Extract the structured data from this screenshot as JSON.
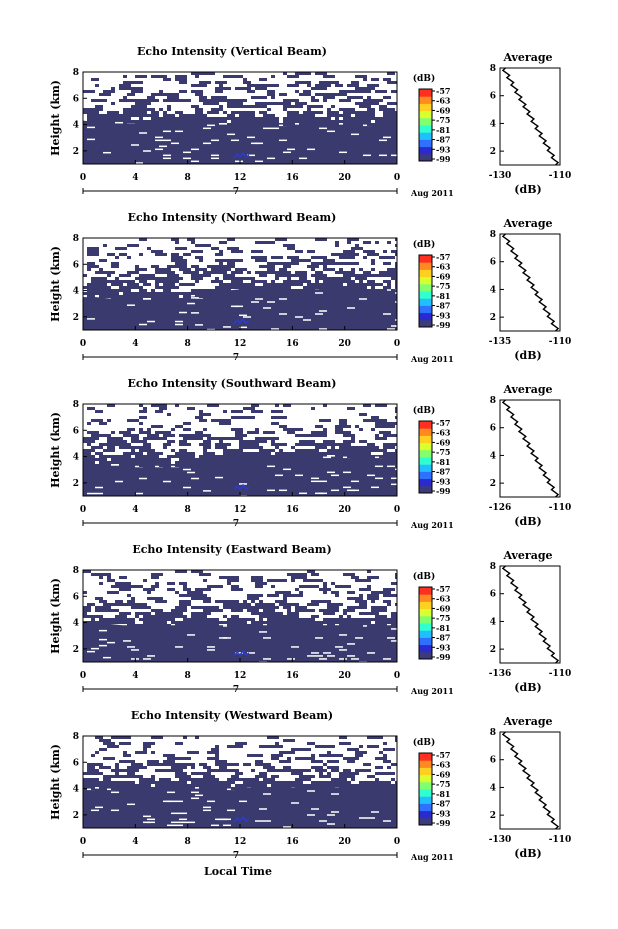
{
  "colors": {
    "background": "#ffffff",
    "echo_fill": "#3a3a6e",
    "feature": "#2a3ccf",
    "colorbar": [
      "#3b3b78",
      "#2a2ad0",
      "#3070ff",
      "#20c0ff",
      "#30ffd0",
      "#80ff70",
      "#d8ff30",
      "#ffd020",
      "#ff8a20",
      "#ff3020"
    ]
  },
  "figure": {
    "xlabel": "Local Time"
  },
  "chart_data": [
    {
      "type": "heatmap",
      "title": "Echo Intensity (Vertical Beam)",
      "ylabel": "Height (km)",
      "yticks": [
        "2",
        "4",
        "6",
        "8"
      ],
      "ylim": [
        1,
        8
      ],
      "xticks": [
        "0",
        "4",
        "8",
        "12",
        "16",
        "20",
        "0"
      ],
      "xlim": [
        0,
        24
      ],
      "date_label": "7",
      "month_label": "Aug 2011",
      "colorbar": {
        "unit": "(dB)",
        "ticks": [
          "-57",
          "-63",
          "-69",
          "-75",
          "-81",
          "-87",
          "-93",
          "-99"
        ]
      },
      "echo_top_km": [
        4.3,
        4.2,
        4.2,
        4.1,
        4.1,
        4.0,
        4.0,
        4.0,
        4.0,
        4.0,
        4.0,
        4.0,
        4.0,
        4.0,
        4.0,
        4.0,
        4.0,
        4.0,
        4.0,
        4.0,
        4.0,
        4.0,
        4.0,
        4.0,
        4.0
      ],
      "profile": {
        "title": "Average",
        "xlabel": "(dB)",
        "xticks": [
          "-130",
          "-110"
        ],
        "xlim": [
          -130,
          -110
        ],
        "yticks": [
          "2",
          "4",
          "6",
          "8"
        ],
        "ylim": [
          1,
          8
        ]
      }
    },
    {
      "type": "heatmap",
      "title": "Echo Intensity (Northward Beam)",
      "ylabel": "Height (km)",
      "yticks": [
        "2",
        "4",
        "6",
        "8"
      ],
      "ylim": [
        1,
        8
      ],
      "xticks": [
        "0",
        "4",
        "8",
        "12",
        "16",
        "20",
        "0"
      ],
      "xlim": [
        0,
        24
      ],
      "date_label": "7",
      "month_label": "Aug 2011",
      "colorbar": {
        "unit": "(dB)",
        "ticks": [
          "-57",
          "-63",
          "-69",
          "-75",
          "-81",
          "-87",
          "-93",
          "-99"
        ]
      },
      "echo_top_km": [
        3.5,
        3.5,
        3.4,
        3.4,
        3.3,
        3.3,
        3.3,
        3.3,
        3.5,
        3.6,
        3.8,
        4.0,
        4.1,
        4.1,
        4.1,
        4.1,
        4.1,
        4.1,
        4.1,
        4.1,
        4.1,
        4.1,
        4.1,
        4.1,
        4.1
      ],
      "profile": {
        "title": "Average",
        "xlabel": "(dB)",
        "xticks": [
          "-135",
          "-110"
        ],
        "xlim": [
          -135,
          -110
        ],
        "yticks": [
          "2",
          "4",
          "6",
          "8"
        ],
        "ylim": [
          1,
          8
        ]
      }
    },
    {
      "type": "heatmap",
      "title": "Echo Intensity (Southward Beam)",
      "ylabel": "Height (km)",
      "yticks": [
        "2",
        "4",
        "6",
        "8"
      ],
      "ylim": [
        1,
        8
      ],
      "xticks": [
        "0",
        "4",
        "8",
        "12",
        "16",
        "20",
        "0"
      ],
      "xlim": [
        0,
        24
      ],
      "date_label": "7",
      "month_label": "Aug 2011",
      "colorbar": {
        "unit": "(dB)",
        "ticks": [
          "-57",
          "-63",
          "-69",
          "-75",
          "-81",
          "-87",
          "-93",
          "-99"
        ]
      },
      "echo_top_km": [
        3.3,
        3.3,
        3.3,
        3.3,
        3.3,
        3.3,
        3.3,
        3.3,
        3.3,
        3.5,
        3.6,
        3.8,
        3.9,
        3.9,
        4.0,
        4.0,
        4.0,
        4.0,
        4.0,
        4.0,
        4.0,
        4.0,
        4.0,
        4.0,
        4.0
      ],
      "profile": {
        "title": "Average",
        "xlabel": "(dB)",
        "xticks": [
          "-126",
          "-110"
        ],
        "xlim": [
          -126,
          -110
        ],
        "yticks": [
          "2",
          "4",
          "6",
          "8"
        ],
        "ylim": [
          1,
          8
        ]
      }
    },
    {
      "type": "heatmap",
      "title": "Echo Intensity (Eastward Beam)",
      "ylabel": "Height (km)",
      "yticks": [
        "2",
        "4",
        "6",
        "8"
      ],
      "ylim": [
        1,
        8
      ],
      "xticks": [
        "0",
        "4",
        "8",
        "12",
        "16",
        "20",
        "0"
      ],
      "xlim": [
        0,
        24
      ],
      "date_label": "7",
      "month_label": "Aug 2011",
      "colorbar": {
        "unit": "(dB)",
        "ticks": [
          "-57",
          "-63",
          "-69",
          "-75",
          "-81",
          "-87",
          "-93",
          "-99"
        ]
      },
      "echo_top_km": [
        3.9,
        3.9,
        3.9,
        3.8,
        3.8,
        3.8,
        3.8,
        3.8,
        3.8,
        3.8,
        3.8,
        3.8,
        3.8,
        3.8,
        3.8,
        3.8,
        3.8,
        3.8,
        3.8,
        3.8,
        3.8,
        3.8,
        3.8,
        3.8,
        3.8
      ],
      "profile": {
        "title": "Average",
        "xlabel": "(dB)",
        "xticks": [
          "-136",
          "-110"
        ],
        "xlim": [
          -136,
          -110
        ],
        "yticks": [
          "2",
          "4",
          "6",
          "8"
        ],
        "ylim": [
          1,
          8
        ]
      }
    },
    {
      "type": "heatmap",
      "title": "Echo Intensity (Westward Beam)",
      "ylabel": "Height (km)",
      "yticks": [
        "2",
        "4",
        "6",
        "8"
      ],
      "ylim": [
        1,
        8
      ],
      "xticks": [
        "0",
        "4",
        "8",
        "12",
        "16",
        "20",
        "0"
      ],
      "xlim": [
        0,
        24
      ],
      "date_label": "7",
      "month_label": "Aug 2011",
      "colorbar": {
        "unit": "(dB)",
        "ticks": [
          "-57",
          "-63",
          "-69",
          "-75",
          "-81",
          "-87",
          "-93",
          "-99"
        ]
      },
      "echo_top_km": [
        4.0,
        4.0,
        4.0,
        4.0,
        4.0,
        4.0,
        4.0,
        4.0,
        4.0,
        4.0,
        4.0,
        4.0,
        4.1,
        4.1,
        4.1,
        4.1,
        4.1,
        4.1,
        4.1,
        4.1,
        4.1,
        4.1,
        4.1,
        4.1,
        4.1
      ],
      "profile": {
        "title": "Average",
        "xlabel": "(dB)",
        "xticks": [
          "-130",
          "-110"
        ],
        "xlim": [
          -130,
          -110
        ],
        "yticks": [
          "2",
          "4",
          "6",
          "8"
        ],
        "ylim": [
          1,
          8
        ]
      }
    }
  ]
}
